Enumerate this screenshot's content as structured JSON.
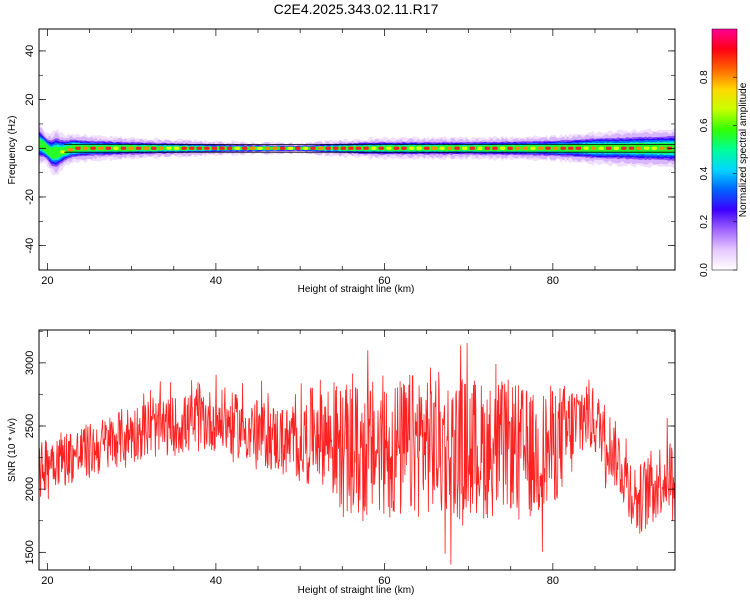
{
  "title": "C2E4.2025.343.02.11.R17",
  "chart_data": [
    {
      "type": "heatmap",
      "name": "spectrogram",
      "xlabel": "Height of straight line (km)",
      "ylabel": "Frequency (Hz)",
      "xlim": [
        19,
        94.5
      ],
      "ylim": [
        -50,
        49
      ],
      "xticks": [
        20,
        40,
        60,
        80
      ],
      "yticks": [
        -40,
        -20,
        0,
        20,
        40
      ],
      "colorbar": {
        "label": "Normalized spectral amplitude",
        "range": [
          0,
          1
        ],
        "ticks": [
          "0.0",
          "0.2",
          "0.4",
          "0.6",
          "0.8"
        ],
        "colors": [
          "#ffffff",
          "#e6c8ff",
          "#a064ff",
          "#3c00ff",
          "#0064ff",
          "#00d7ff",
          "#00ff96",
          "#32ff00",
          "#c8ff00",
          "#ffd700",
          "#ff6400",
          "#ff0014",
          "#ff0096"
        ]
      },
      "band_halfwidth_hz": [
        [
          19,
          5
        ],
        [
          20,
          4
        ],
        [
          21,
          6
        ],
        [
          22,
          4
        ],
        [
          25,
          3
        ],
        [
          30,
          2.5
        ],
        [
          40,
          1.5
        ],
        [
          50,
          1
        ],
        [
          55,
          2
        ],
        [
          60,
          2.5
        ],
        [
          70,
          2.5
        ],
        [
          80,
          3
        ],
        [
          85,
          4
        ],
        [
          90,
          4.5
        ],
        [
          94.5,
          5
        ]
      ],
      "peak_frequency_hz": [
        [
          19,
          2
        ],
        [
          19.5,
          1
        ],
        [
          20.5,
          -2
        ],
        [
          21.5,
          -1.5
        ],
        [
          23,
          0
        ],
        [
          94.5,
          0
        ]
      ]
    },
    {
      "type": "line",
      "name": "snr",
      "xlabel": "Height of straight line (km)",
      "ylabel": "SNR (10 * v/v)",
      "xlim": [
        19,
        94.5
      ],
      "ylim": [
        1360,
        3260
      ],
      "xticks": [
        20,
        40,
        60,
        80
      ],
      "yticks": [
        1500,
        2000,
        2500,
        3000
      ],
      "color": "#ff2020",
      "series": [
        {
          "x": [
            19,
            20,
            22,
            25,
            30,
            35,
            40,
            45,
            48,
            50,
            52,
            55,
            58,
            60,
            62,
            65,
            68,
            70,
            72,
            75,
            78,
            80,
            82,
            84,
            86,
            88,
            90,
            92,
            94.5
          ],
          "y": [
            2100,
            2250,
            2250,
            2300,
            2450,
            2500,
            2550,
            2450,
            2380,
            2350,
            2500,
            2300,
            2300,
            2350,
            2300,
            2400,
            2300,
            2350,
            2300,
            2350,
            2250,
            2350,
            2450,
            2600,
            2450,
            2200,
            1900,
            2050,
            2150
          ]
        }
      ],
      "spread": [
        [
          19,
          300
        ],
        [
          30,
          300
        ],
        [
          45,
          350
        ],
        [
          50,
          400
        ],
        [
          55,
          700
        ],
        [
          65,
          800
        ],
        [
          80,
          650
        ],
        [
          85,
          350
        ],
        [
          95,
          400
        ]
      ]
    }
  ]
}
